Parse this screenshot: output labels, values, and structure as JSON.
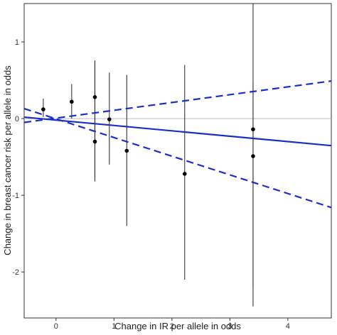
{
  "chart_data": {
    "type": "scatter",
    "title": "",
    "xlabel": "Change in IR per allele in odds",
    "ylabel": "Change in breast cancer risk per allele in odds",
    "xlim": [
      -0.55,
      4.75
    ],
    "ylim": [
      -2.6,
      1.5
    ],
    "xticks": [
      0,
      1,
      2,
      3,
      4
    ],
    "yticks": [
      -2,
      -1,
      0,
      1
    ],
    "grid": false,
    "points": [
      {
        "x": -0.22,
        "y": 0.12,
        "lo": 0.02,
        "hi": 0.26
      },
      {
        "x": 0.27,
        "y": 0.22,
        "lo": 0.0,
        "hi": 0.45
      },
      {
        "x": 0.67,
        "y": 0.28,
        "lo": -0.78,
        "hi": 0.76
      },
      {
        "x": 0.67,
        "y": -0.3,
        "lo": -0.82,
        "hi": 0.74
      },
      {
        "x": 0.92,
        "y": -0.01,
        "lo": -0.6,
        "hi": 0.6
      },
      {
        "x": 1.22,
        "y": -0.42,
        "lo": -1.4,
        "hi": 0.57
      },
      {
        "x": 2.22,
        "y": -0.72,
        "lo": -2.1,
        "hi": 0.7
      },
      {
        "x": 3.4,
        "y": -0.14,
        "lo": -2.45,
        "hi": 1.5
      },
      {
        "x": 3.4,
        "y": -0.49,
        "lo": -2.2,
        "hi": 0.47
      }
    ],
    "reference_line": {
      "y": 0,
      "color": "#bbbbbb"
    },
    "fit": {
      "intercept": -0.02,
      "slope": -0.07,
      "ci_upper": [
        [
          -0.55,
          -0.05
        ],
        [
          4.75,
          0.49
        ]
      ],
      "ci_lower": [
        [
          -0.55,
          0.13
        ],
        [
          4.75,
          -1.16
        ]
      ],
      "color": "#1a2fc8"
    },
    "point_color": "#000000"
  }
}
